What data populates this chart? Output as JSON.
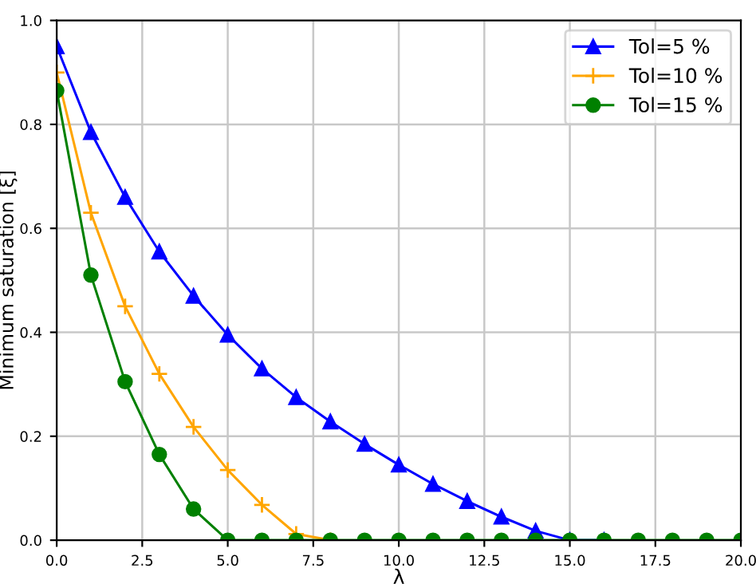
{
  "chart_data": {
    "type": "line",
    "xlabel": "λ",
    "ylabel": "Minimum saturation [ξ]",
    "x": [
      0,
      1,
      2,
      3,
      4,
      5,
      6,
      7,
      8,
      9,
      10,
      11,
      12,
      13,
      14,
      15,
      16,
      17,
      18,
      19,
      20
    ],
    "series": [
      {
        "name": "Tol=5 %",
        "color": "#0000ff",
        "marker": "triangle",
        "values": [
          0.95,
          0.785,
          0.66,
          0.555,
          0.47,
          0.395,
          0.33,
          0.275,
          0.228,
          0.185,
          0.145,
          0.108,
          0.075,
          0.045,
          0.018,
          0,
          0,
          null,
          null,
          null,
          null
        ]
      },
      {
        "name": "Tol=10 %",
        "color": "#ffa500",
        "marker": "cross",
        "values": [
          0.9,
          0.63,
          0.45,
          0.32,
          0.218,
          0.135,
          0.068,
          0.012,
          0,
          null,
          null,
          null,
          null,
          null,
          null,
          null,
          null,
          null,
          null,
          null,
          null
        ]
      },
      {
        "name": "Tol=15 %",
        "color": "#008000",
        "marker": "circle",
        "values": [
          0.865,
          0.51,
          0.305,
          0.165,
          0.06,
          0,
          0,
          0,
          0,
          0,
          0,
          0,
          0,
          0,
          0,
          0,
          0,
          0,
          0,
          0,
          0
        ]
      }
    ],
    "xlim": [
      0,
      20
    ],
    "xticks": [
      {
        "value": 0,
        "label": "0.0"
      },
      {
        "value": 2.5,
        "label": "2.5"
      },
      {
        "value": 5,
        "label": "5.0"
      },
      {
        "value": 7.5,
        "label": "7.5"
      },
      {
        "value": 10,
        "label": "10.0"
      },
      {
        "value": 12.5,
        "label": "12.5"
      },
      {
        "value": 15,
        "label": "15.0"
      },
      {
        "value": 17.5,
        "label": "17.5"
      },
      {
        "value": 20,
        "label": "20.0"
      }
    ],
    "ylim": [
      0,
      1
    ],
    "yticks": [
      {
        "value": 0,
        "label": "0.0"
      },
      {
        "value": 0.2,
        "label": "0.2"
      },
      {
        "value": 0.4,
        "label": "0.4"
      },
      {
        "value": 0.6,
        "label": "0.6"
      },
      {
        "value": 0.8,
        "label": "0.8"
      },
      {
        "value": 1,
        "label": "1.0"
      }
    ],
    "grid": true,
    "legend": "top right",
    "line_style": "solid"
  }
}
